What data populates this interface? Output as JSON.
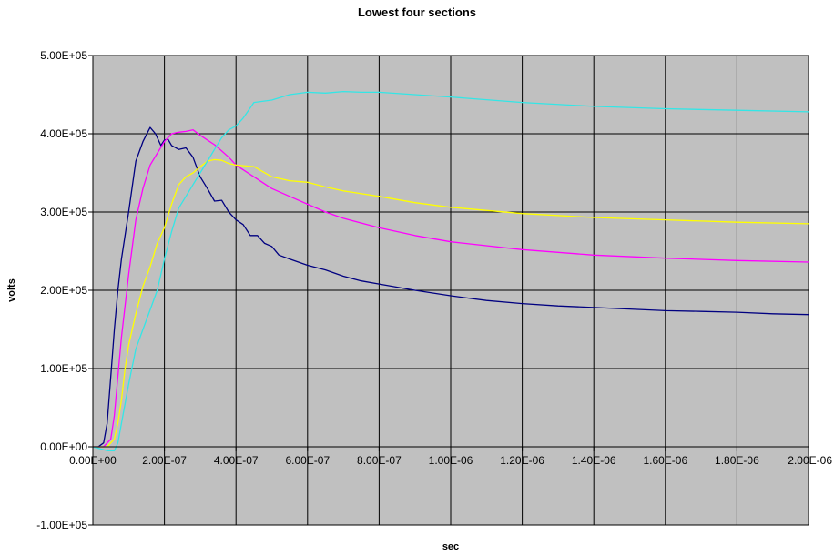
{
  "chart_data": {
    "type": "line",
    "title": "Lowest four sections",
    "xlabel": "sec",
    "ylabel": "volts",
    "xlim": [
      0,
      2e-06
    ],
    "ylim": [
      -100000,
      500000
    ],
    "grid": true,
    "legend": "none",
    "plot_background": "#c0c0c0",
    "x_tick_labels": [
      "0.00E+00",
      "2.00E-07",
      "4.00E-07",
      "6.00E-07",
      "8.00E-07",
      "1.00E-06",
      "1.20E-06",
      "1.40E-06",
      "1.60E-06",
      "1.80E-06",
      "2.00E-06"
    ],
    "x_ticks": [
      0,
      2e-07,
      4e-07,
      6e-07,
      8e-07,
      1e-06,
      1.2e-06,
      1.4e-06,
      1.6e-06,
      1.8e-06,
      2e-06
    ],
    "y_tick_labels": [
      "-1.00E+05",
      "0.00E+00",
      "1.00E+05",
      "2.00E+05",
      "3.00E+05",
      "4.00E+05",
      "5.00E+05"
    ],
    "y_ticks": [
      -100000,
      0,
      100000,
      200000,
      300000,
      400000,
      500000
    ],
    "series": [
      {
        "color": "#000080",
        "x": [
          0,
          1.5e-08,
          3e-08,
          4e-08,
          5e-08,
          6e-08,
          7e-08,
          8e-08,
          1e-07,
          1.2e-07,
          1.4e-07,
          1.6e-07,
          1.75e-07,
          1.9e-07,
          2e-07,
          2.1e-07,
          2.2e-07,
          2.4e-07,
          2.6e-07,
          2.8e-07,
          3e-07,
          3.2e-07,
          3.4e-07,
          3.6e-07,
          3.8e-07,
          4e-07,
          4.2e-07,
          4.4e-07,
          4.6e-07,
          4.8e-07,
          5e-07,
          5.2e-07,
          5.5e-07,
          6e-07,
          6.5e-07,
          7e-07,
          7.5e-07,
          8e-07,
          9e-07,
          1e-06,
          1.1e-06,
          1.2e-06,
          1.3e-06,
          1.4e-06,
          1.5e-06,
          1.6e-06,
          1.7e-06,
          1.8e-06,
          1.9e-06,
          2e-06
        ],
        "y": [
          0,
          0,
          5000,
          30000,
          90000,
          150000,
          200000,
          240000,
          300000,
          365000,
          390000,
          408000,
          400000,
          385000,
          392000,
          393000,
          385000,
          380000,
          382000,
          370000,
          345000,
          330000,
          314000,
          315000,
          300000,
          290000,
          284000,
          270000,
          270000,
          260000,
          256000,
          245000,
          240000,
          232000,
          226000,
          218000,
          212000,
          208000,
          200000,
          193000,
          187000,
          183000,
          180000,
          178000,
          176000,
          174000,
          173000,
          172000,
          170000,
          169000
        ]
      },
      {
        "color": "#ff00ff",
        "x": [
          0,
          3e-08,
          5e-08,
          6e-08,
          7e-08,
          8e-08,
          1e-07,
          1.2e-07,
          1.4e-07,
          1.6e-07,
          1.8e-07,
          2e-07,
          2.2e-07,
          2.4e-07,
          2.6e-07,
          2.8e-07,
          3e-07,
          3.2e-07,
          3.4e-07,
          3.6e-07,
          3.8e-07,
          4e-07,
          4.5e-07,
          5e-07,
          5.5e-07,
          6e-07,
          6.5e-07,
          7e-07,
          8e-07,
          9e-07,
          1e-06,
          1.2e-06,
          1.4e-06,
          1.6e-06,
          1.8e-06,
          2e-06
        ],
        "y": [
          0,
          0,
          10000,
          40000,
          90000,
          140000,
          220000,
          290000,
          330000,
          360000,
          375000,
          390000,
          400000,
          402000,
          403000,
          405000,
          398000,
          392000,
          386000,
          378000,
          370000,
          360000,
          345000,
          330000,
          320000,
          310000,
          300000,
          292000,
          280000,
          270000,
          262000,
          252000,
          245000,
          241000,
          238000,
          236000
        ],
        "name": ""
      },
      {
        "color": "#ffff00",
        "x": [
          0,
          4e-08,
          6e-08,
          7e-08,
          8e-08,
          9e-08,
          1e-07,
          1.2e-07,
          1.4e-07,
          1.6e-07,
          1.8e-07,
          2e-07,
          2.2e-07,
          2.4e-07,
          2.6e-07,
          2.8e-07,
          3e-07,
          3.2e-07,
          3.4e-07,
          3.6e-07,
          3.8e-07,
          4e-07,
          4.5e-07,
          5e-07,
          5.5e-07,
          6e-07,
          6.5e-07,
          7e-07,
          8e-07,
          9e-07,
          1e-06,
          1.2e-06,
          1.4e-06,
          1.6e-06,
          1.8e-06,
          2e-06
        ],
        "y": [
          0,
          0,
          10000,
          30000,
          60000,
          100000,
          130000,
          170000,
          205000,
          230000,
          260000,
          280000,
          310000,
          335000,
          345000,
          350000,
          358000,
          365000,
          367000,
          366000,
          362000,
          360000,
          358000,
          345000,
          340000,
          338000,
          332000,
          327000,
          320000,
          312000,
          306000,
          298000,
          293000,
          290000,
          287000,
          285000
        ],
        "name": ""
      },
      {
        "color": "#33e6e6",
        "x": [
          0,
          4e-08,
          5e-08,
          6e-08,
          7e-08,
          8e-08,
          1e-07,
          1.2e-07,
          1.4e-07,
          1.6e-07,
          1.8e-07,
          2e-07,
          2.2e-07,
          2.4e-07,
          2.6e-07,
          2.8e-07,
          3e-07,
          3.2e-07,
          3.4e-07,
          3.6e-07,
          3.8e-07,
          4e-07,
          4.2e-07,
          4.5e-07,
          5e-07,
          5.5e-07,
          6e-07,
          6.5e-07,
          7e-07,
          7.5e-07,
          8e-07,
          9e-07,
          1e-06,
          1.2e-06,
          1.4e-06,
          1.6e-06,
          1.8e-06,
          2e-06
        ],
        "y": [
          0,
          -5000,
          -5000,
          -5000,
          5000,
          30000,
          80000,
          125000,
          150000,
          175000,
          200000,
          240000,
          275000,
          305000,
          320000,
          335000,
          350000,
          365000,
          380000,
          395000,
          405000,
          410000,
          420000,
          440000,
          443000,
          450000,
          453000,
          452000,
          454000,
          453000,
          453000,
          450000,
          447000,
          440000,
          435000,
          432000,
          430000,
          428000
        ],
        "name": ""
      }
    ]
  }
}
